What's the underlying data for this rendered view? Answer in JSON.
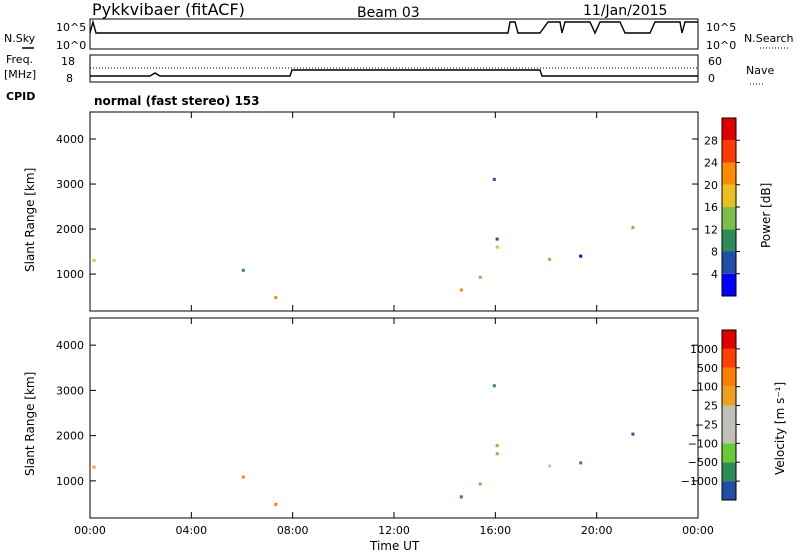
{
  "header": {
    "station": "Pykkvibaer (fitACF)",
    "beam": "Beam 03",
    "date": "11/Jan/2015"
  },
  "top_panels": {
    "nsky_label": "N.Sky",
    "nsky_ticks": [
      "10^5",
      "10^0"
    ],
    "nsearch_label": "N.Search",
    "nsearch_ticks": [
      "10^5",
      "10^0"
    ],
    "freq_label_1": "Freq.",
    "freq_label_2": "[MHz]",
    "freq_ticks": [
      "18",
      "8"
    ],
    "nave_label": "Nave",
    "nave_ticks": [
      "60",
      "0"
    ],
    "cpid_label": "CPID",
    "cpid_text": "normal (fast stereo) 153"
  },
  "chart_data": [
    {
      "type": "heatmap",
      "name": "power",
      "ylabel": "Slant Range [km]",
      "y_ticks": [
        "1000",
        "2000",
        "3000",
        "4000"
      ],
      "ylim": [
        180,
        4600
      ],
      "xlim": [
        "00:00",
        "24:00"
      ],
      "colorbar_label": "Power [dB]",
      "colorbar_ticks": [
        "4",
        "8",
        "12",
        "16",
        "20",
        "24",
        "28"
      ],
      "colorbar_colors": [
        "#0000ff",
        "#1f4ea8",
        "#2e8b57",
        "#7cbf4a",
        "#e8c020",
        "#ff8c00",
        "#ff3b00",
        "#e00000"
      ]
    },
    {
      "type": "heatmap",
      "name": "velocity",
      "ylabel": "Slant Range [km]",
      "y_ticks": [
        "1000",
        "2000",
        "3000",
        "4000"
      ],
      "ylim": [
        180,
        4600
      ],
      "xlim": [
        "00:00",
        "24:00"
      ],
      "x_ticks": [
        "00:00",
        "04:00",
        "08:00",
        "12:00",
        "16:00",
        "20:00",
        "00:00"
      ],
      "xlabel": "Time UT",
      "colorbar_label": "Velocity [m s⁻¹]",
      "colorbar_ticks": [
        "1000",
        "500",
        "100",
        "25",
        "−25",
        "−100",
        "−500",
        "−1000"
      ],
      "colorbar_colors": [
        "#1f4ea8",
        "#2e8b57",
        "#66cc33",
        "#c0c0b8",
        "#c0c0b8",
        "#f0a020",
        "#ff8000",
        "#ff4000",
        "#e00000"
      ]
    }
  ]
}
